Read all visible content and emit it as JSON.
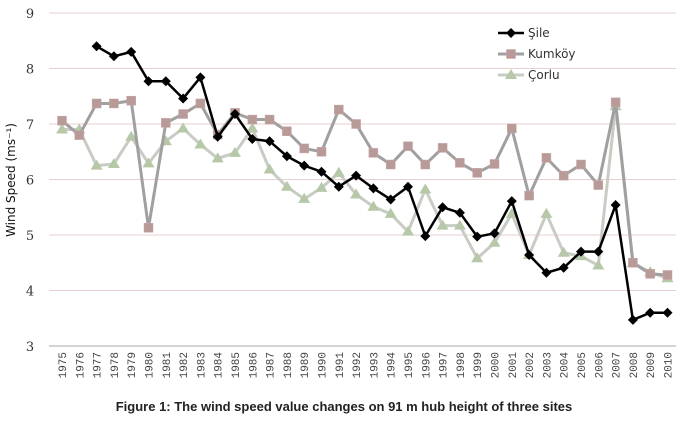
{
  "chart_data": {
    "type": "line",
    "title": "",
    "xlabel": "",
    "ylabel": "Wind Speed (ms⁻¹)",
    "ylim": [
      3,
      9
    ],
    "yticks": [
      3,
      4,
      5,
      6,
      7,
      8,
      9
    ],
    "grid": true,
    "legend_position": "top-right",
    "categories": [
      "1975",
      "1976",
      "1977",
      "1978",
      "1979",
      "1980",
      "1981",
      "1982",
      "1983",
      "1984",
      "1985",
      "1986",
      "1987",
      "1988",
      "1989",
      "1990",
      "1991",
      "1992",
      "1993",
      "1994",
      "1995",
      "1996",
      "1997",
      "1998",
      "1999",
      "2000",
      "2001",
      "2002",
      "2003",
      "2004",
      "2005",
      "2006",
      "2007",
      "2008",
      "2009",
      "2010"
    ],
    "series": [
      {
        "name": "Şile",
        "color": "#000000",
        "marker": "diamond",
        "values": [
          null,
          null,
          8.4,
          8.22,
          8.3,
          7.77,
          7.77,
          7.46,
          7.84,
          6.77,
          7.18,
          6.73,
          6.69,
          6.42,
          6.25,
          6.14,
          5.87,
          6.07,
          5.84,
          5.64,
          5.87,
          4.98,
          5.5,
          5.4,
          4.97,
          5.03,
          5.61,
          4.64,
          4.32,
          4.41,
          4.7,
          4.7,
          5.54,
          3.47,
          3.6,
          3.6
        ]
      },
      {
        "name": "Kumköy",
        "color": "#a0a0a0",
        "marker_color": "#b89a98",
        "marker": "square",
        "values": [
          7.06,
          6.8,
          7.37,
          7.37,
          7.42,
          5.13,
          7.02,
          7.18,
          7.37,
          6.81,
          7.2,
          7.08,
          7.08,
          6.87,
          6.56,
          6.5,
          7.26,
          7.0,
          6.48,
          6.27,
          6.6,
          6.27,
          6.57,
          6.3,
          6.12,
          6.28,
          6.92,
          5.71,
          6.39,
          6.07,
          6.27,
          5.9,
          7.39,
          4.5,
          4.3,
          4.28
        ]
      },
      {
        "name": "Çorlu",
        "color": "#c8ccc4",
        "marker_color": "#b6c8a8",
        "marker": "triangle",
        "values": [
          6.9,
          6.9,
          6.25,
          6.28,
          6.77,
          6.29,
          6.69,
          6.92,
          6.63,
          6.38,
          6.48,
          6.92,
          6.18,
          5.87,
          5.65,
          5.85,
          6.12,
          5.73,
          5.51,
          5.38,
          5.06,
          5.82,
          5.17,
          5.17,
          4.58,
          4.86,
          5.38,
          4.64,
          5.38,
          4.68,
          4.62,
          4.45,
          7.32,
          4.5,
          4.33,
          4.22
        ]
      }
    ],
    "caption": "Figure 1: The wind speed value changes on 91 m hub height of three sites"
  }
}
